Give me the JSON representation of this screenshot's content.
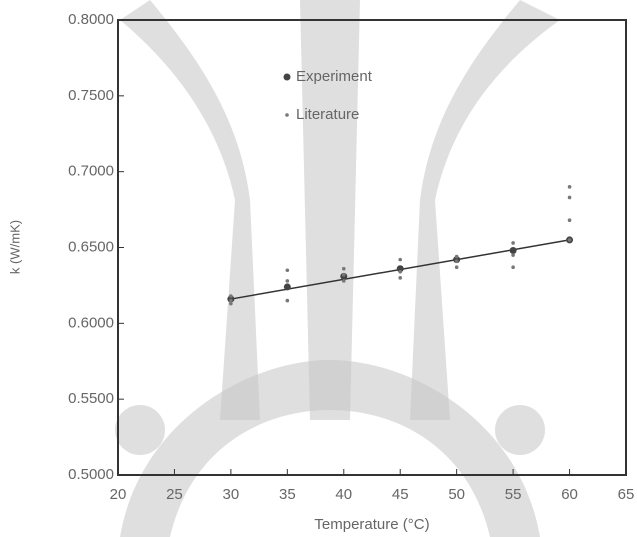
{
  "chart_data": {
    "type": "scatter",
    "xlabel": "Temperature (°C)",
    "ylabel": "k (W/mK)",
    "xlim": [
      20,
      65
    ],
    "xticks": [
      20,
      25,
      30,
      35,
      40,
      45,
      50,
      55,
      60,
      65
    ],
    "ylim": [
      0.5,
      0.8
    ],
    "yticks": [
      {
        "value": 0.5,
        "label": "0.5000"
      },
      {
        "value": 0.55,
        "label": "0.5500"
      },
      {
        "value": 0.6,
        "label": "0.6000"
      },
      {
        "value": 0.65,
        "label": "0.6500"
      },
      {
        "value": 0.7,
        "label": "0.7000"
      },
      {
        "value": 0.75,
        "label": "0.7500"
      },
      {
        "value": 0.8,
        "label": "0.8000"
      }
    ],
    "series": [
      {
        "name": "Experiment",
        "color": "#444444",
        "marker_size": 3.5,
        "x": [
          30,
          35,
          40,
          45,
          50,
          55,
          60
        ],
        "values": [
          0.616,
          0.624,
          0.631,
          0.636,
          0.642,
          0.648,
          0.655
        ]
      },
      {
        "name": "Literature",
        "color": "#777777",
        "marker_size": 1.8,
        "x": [
          30,
          30,
          30,
          35,
          35,
          35,
          40,
          40,
          40,
          45,
          45,
          45,
          50,
          50,
          50,
          55,
          55,
          55,
          60,
          60,
          60,
          60
        ],
        "values": [
          0.613,
          0.618,
          0.615,
          0.615,
          0.628,
          0.635,
          0.628,
          0.632,
          0.636,
          0.63,
          0.634,
          0.642,
          0.637,
          0.641,
          0.644,
          0.637,
          0.645,
          0.653,
          0.655,
          0.668,
          0.683,
          0.69
        ]
      }
    ],
    "trend_line": {
      "color": "#333333",
      "x": [
        30,
        60
      ],
      "values": [
        0.616,
        0.655
      ]
    }
  }
}
